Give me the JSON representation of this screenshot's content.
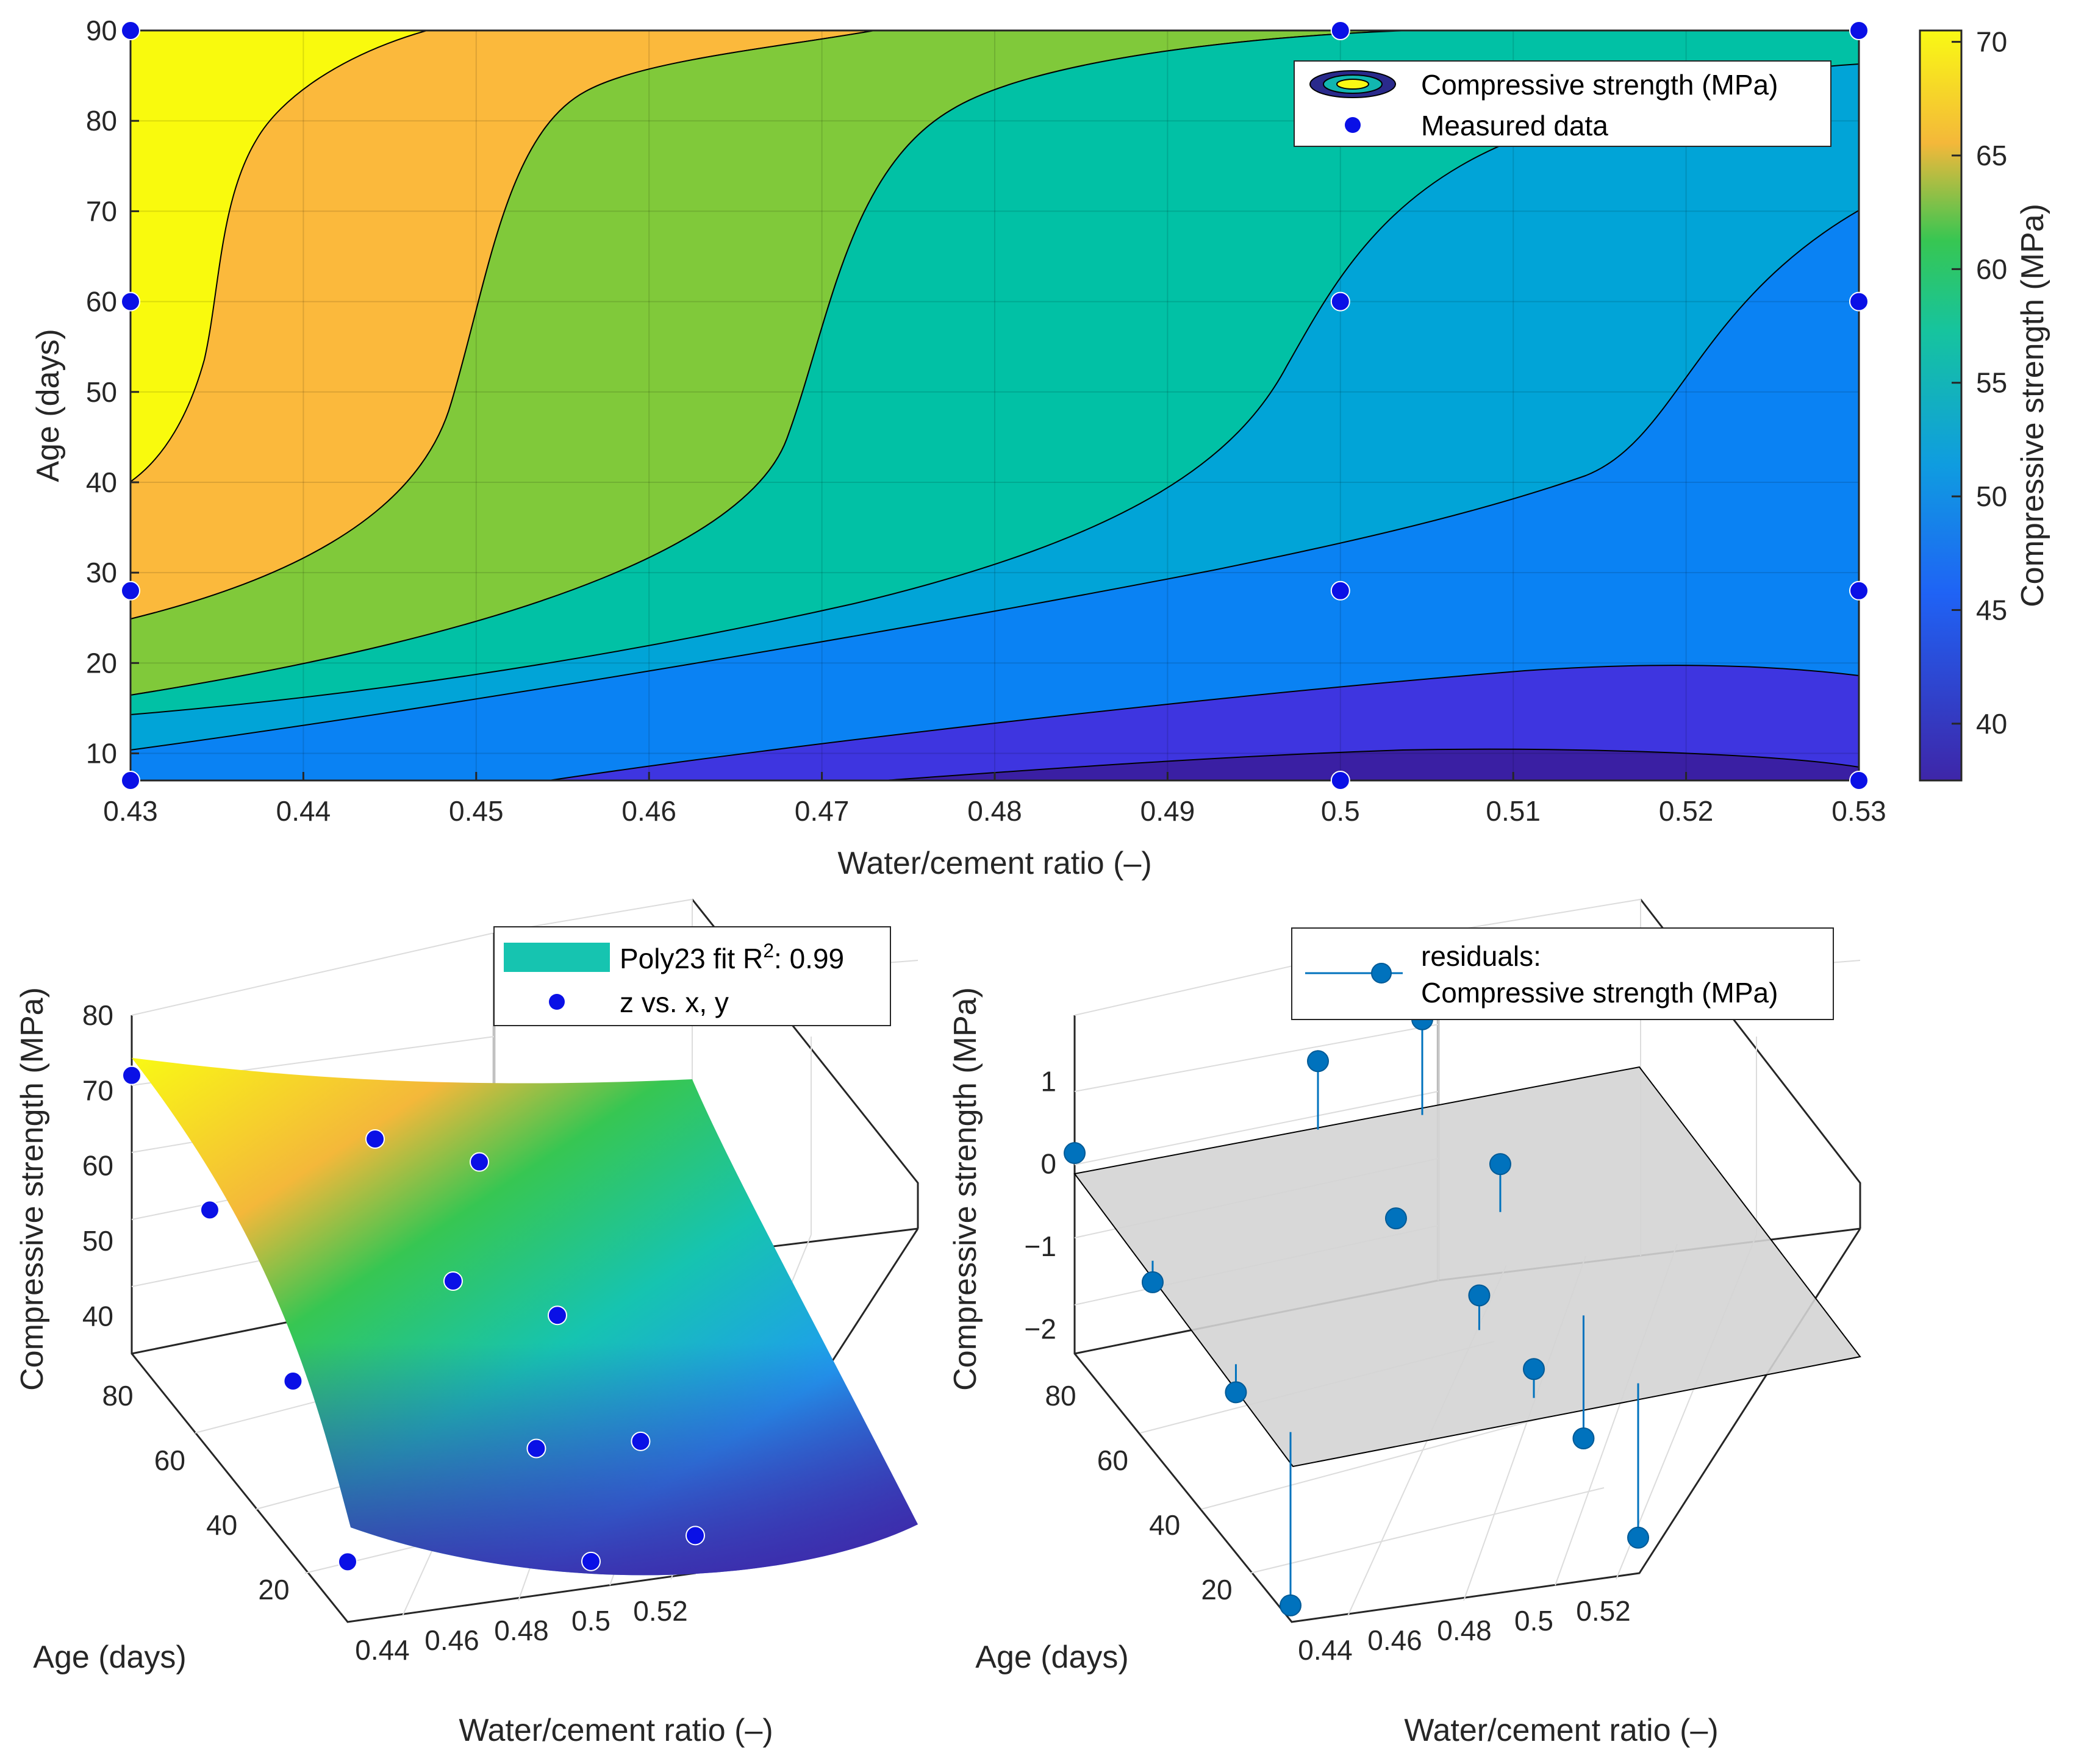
{
  "figure": {
    "colorbar": {
      "label": "Compressive strength (MPa)",
      "ticks": [
        40,
        45,
        50,
        55,
        60,
        65,
        70
      ],
      "range": [
        37.5,
        70.5
      ]
    },
    "colors": {
      "measured": "#0a10e6",
      "residual": "#0072bd",
      "plane": "#d4d4d4"
    }
  },
  "chart_data": [
    {
      "type": "contour",
      "name": "strength-contour",
      "xlabel": "Water/cement ratio (–)",
      "ylabel": "Age (days)",
      "xlim": [
        0.43,
        0.53
      ],
      "ylim": [
        7,
        90
      ],
      "xticks": [
        "0.43",
        "0.44",
        "0.45",
        "0.46",
        "0.47",
        "0.48",
        "0.49",
        "0.5",
        "0.51",
        "0.52",
        "0.53"
      ],
      "yticks": [
        "10",
        "20",
        "30",
        "40",
        "50",
        "60",
        "70",
        "80",
        "90"
      ],
      "levels": [
        40,
        45,
        50,
        55,
        60,
        65,
        70
      ],
      "legend": [
        "Compressive strength (MPa)",
        "Measured data"
      ],
      "measured_points": [
        {
          "x": 0.43,
          "y": 7
        },
        {
          "x": 0.43,
          "y": 28
        },
        {
          "x": 0.43,
          "y": 60
        },
        {
          "x": 0.43,
          "y": 90
        },
        {
          "x": 0.5,
          "y": 7
        },
        {
          "x": 0.5,
          "y": 28
        },
        {
          "x": 0.5,
          "y": 60
        },
        {
          "x": 0.5,
          "y": 90
        },
        {
          "x": 0.53,
          "y": 7
        },
        {
          "x": 0.53,
          "y": 28
        },
        {
          "x": 0.53,
          "y": 60
        },
        {
          "x": 0.53,
          "y": 90
        }
      ]
    },
    {
      "type": "surface",
      "name": "poly23-fit",
      "xlabel": "Water/cement ratio (–)",
      "ylabel": "Age (days)",
      "zlabel": "Compressive strength (MPa)",
      "xticks": [
        "0.44",
        "0.46",
        "0.48",
        "0.5",
        "0.52"
      ],
      "yticks": [
        "20",
        "40",
        "60",
        "80"
      ],
      "zticks": [
        "40",
        "50",
        "60",
        "70",
        "80"
      ],
      "zlim": [
        35,
        80
      ],
      "legend": {
        "fit_prefix": "Poly23 fit R",
        "fit_sup": "2",
        "fit_suffix": ": 0.99",
        "points": "z vs. x, y"
      },
      "points": [
        {
          "x": 0.43,
          "y": 90,
          "z": 72.0
        },
        {
          "x": 0.43,
          "y": 60,
          "z": 67.0
        },
        {
          "x": 0.43,
          "y": 28,
          "z": 58.0
        },
        {
          "x": 0.43,
          "y": 7,
          "z": 43.0
        },
        {
          "x": 0.5,
          "y": 90,
          "z": 59.0
        },
        {
          "x": 0.5,
          "y": 60,
          "z": 53.0
        },
        {
          "x": 0.5,
          "y": 28,
          "z": 44.5
        },
        {
          "x": 0.5,
          "y": 7,
          "z": 38.5
        },
        {
          "x": 0.53,
          "y": 90,
          "z": 54.0
        },
        {
          "x": 0.53,
          "y": 60,
          "z": 46.5
        },
        {
          "x": 0.53,
          "y": 28,
          "z": 43.5
        },
        {
          "x": 0.53,
          "y": 7,
          "z": 40.0
        }
      ]
    },
    {
      "type": "stem3",
      "name": "residuals",
      "xlabel": "Water/cement ratio (–)",
      "ylabel": "Age (days)",
      "zlabel": "Compressive strength (MPa)",
      "xticks": [
        "0.44",
        "0.46",
        "0.48",
        "0.5",
        "0.52"
      ],
      "yticks": [
        "20",
        "40",
        "60",
        "80"
      ],
      "zticks": [
        "−2",
        "−1",
        "0",
        "1"
      ],
      "zlim": [
        -2.3,
        1.8
      ],
      "legend": [
        "residuals:",
        "Compressive strength (MPa)"
      ],
      "points": [
        {
          "x": 0.43,
          "y": 90,
          "z": 0.13
        },
        {
          "x": 0.43,
          "y": 60,
          "z": -0.26
        },
        {
          "x": 0.43,
          "y": 28,
          "z": -0.34
        },
        {
          "x": 0.43,
          "y": 7,
          "z": -2.1
        },
        {
          "x": 0.5,
          "y": 90,
          "z": 0.83
        },
        {
          "x": 0.5,
          "y": 60,
          "z": 0.1
        },
        {
          "x": 0.5,
          "y": 28,
          "z": 0.42
        },
        {
          "x": 0.5,
          "y": 7,
          "z": 0.35
        },
        {
          "x": 0.53,
          "y": 90,
          "z": 1.16
        },
        {
          "x": 0.53,
          "y": 60,
          "z": 0.58
        },
        {
          "x": 0.53,
          "y": 28,
          "z": -1.49
        },
        {
          "x": 0.53,
          "y": 7,
          "z": -1.87
        }
      ]
    }
  ]
}
